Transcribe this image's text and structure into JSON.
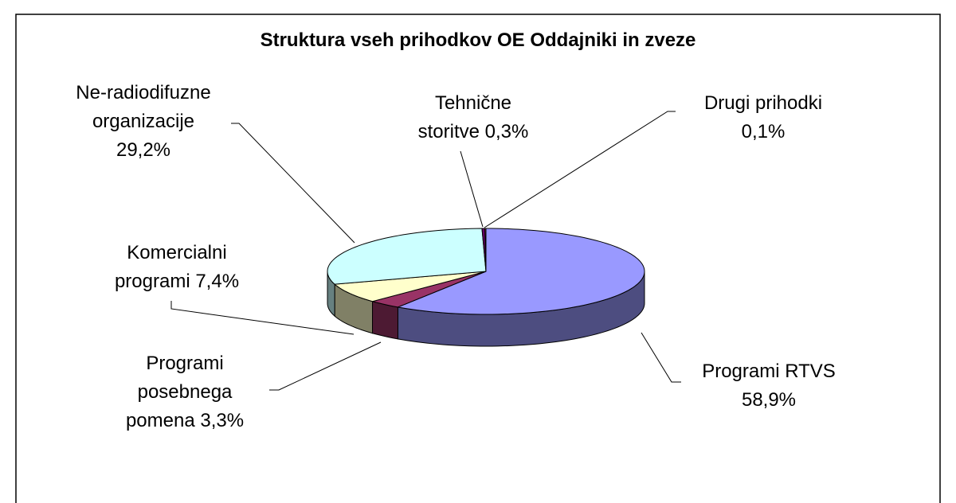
{
  "chart_data": {
    "type": "pie",
    "title": "Struktura vseh prihodkov OE Oddajniki in zveze",
    "categories": [
      "Programi RTVS",
      "Programi posebnega pomena",
      "Komercialni programi",
      "Ne-radiodifuzne organizacije",
      "Tehnične storitve",
      "Drugi prihodki"
    ],
    "values": [
      58.9,
      3.3,
      7.4,
      29.2,
      0.3,
      0.1
    ],
    "value_labels": [
      "58,9%",
      "3,3%",
      "7,4%",
      "29,2%",
      "0,3%",
      "0,1%"
    ],
    "colors": [
      "#9999ff",
      "#993366",
      "#ffffcc",
      "#ccffff",
      "#660066",
      "#ff8080"
    ]
  }
}
